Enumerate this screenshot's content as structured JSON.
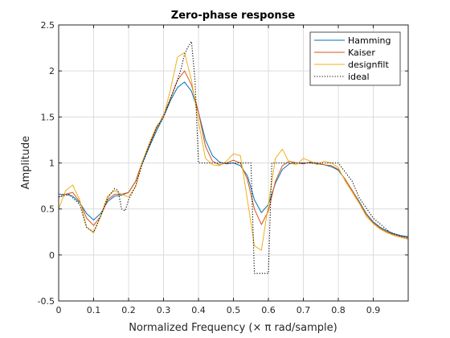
{
  "chart_data": {
    "type": "line",
    "title": "Zero-phase response",
    "xlabel": "Normalized Frequency (× π rad/sample)",
    "ylabel": "Amplitude",
    "xlim": [
      0,
      1
    ],
    "ylim": [
      -0.5,
      2.5
    ],
    "xticks": [
      "0",
      "0.1",
      "0.2",
      "0.3",
      "0.4",
      "0.5",
      "0.6",
      "0.7",
      "0.8",
      "0.9"
    ],
    "yticks": [
      "-0.5",
      "0",
      "0.5",
      "1",
      "1.5",
      "2",
      "2.5"
    ],
    "grid": true,
    "legend_position": "top-right",
    "series": [
      {
        "name": "Hamming",
        "color": "#0072bd",
        "style": "solid",
        "x": [
          0,
          0.02,
          0.04,
          0.06,
          0.08,
          0.1,
          0.12,
          0.14,
          0.16,
          0.18,
          0.2,
          0.22,
          0.24,
          0.26,
          0.28,
          0.3,
          0.32,
          0.34,
          0.36,
          0.38,
          0.4,
          0.42,
          0.44,
          0.46,
          0.48,
          0.5,
          0.52,
          0.54,
          0.56,
          0.58,
          0.6,
          0.62,
          0.64,
          0.66,
          0.68,
          0.7,
          0.72,
          0.74,
          0.76,
          0.78,
          0.8,
          0.82,
          0.84,
          0.86,
          0.88,
          0.9,
          0.92,
          0.94,
          0.96,
          0.98,
          1.0
        ],
        "y": [
          0.66,
          0.66,
          0.64,
          0.57,
          0.45,
          0.38,
          0.45,
          0.58,
          0.64,
          0.65,
          0.68,
          0.8,
          1.0,
          1.18,
          1.35,
          1.5,
          1.68,
          1.82,
          1.88,
          1.78,
          1.55,
          1.25,
          1.08,
          1.01,
          0.99,
          1.0,
          0.97,
          0.86,
          0.6,
          0.46,
          0.55,
          0.78,
          0.93,
          0.99,
          1.0,
          1.0,
          1.0,
          0.99,
          0.98,
          0.96,
          0.92,
          0.82,
          0.7,
          0.58,
          0.45,
          0.36,
          0.3,
          0.26,
          0.23,
          0.21,
          0.2
        ]
      },
      {
        "name": "Kaiser",
        "color": "#d95319",
        "style": "solid",
        "x": [
          0,
          0.02,
          0.04,
          0.06,
          0.08,
          0.1,
          0.12,
          0.14,
          0.16,
          0.18,
          0.2,
          0.22,
          0.24,
          0.26,
          0.28,
          0.3,
          0.32,
          0.34,
          0.36,
          0.38,
          0.4,
          0.42,
          0.44,
          0.46,
          0.48,
          0.5,
          0.52,
          0.54,
          0.56,
          0.58,
          0.6,
          0.62,
          0.64,
          0.66,
          0.68,
          0.7,
          0.72,
          0.74,
          0.76,
          0.78,
          0.8,
          0.82,
          0.84,
          0.86,
          0.88,
          0.9,
          0.92,
          0.94,
          0.96,
          0.98,
          1.0
        ],
        "y": [
          0.63,
          0.66,
          0.68,
          0.58,
          0.4,
          0.32,
          0.42,
          0.6,
          0.66,
          0.66,
          0.68,
          0.8,
          1.02,
          1.2,
          1.38,
          1.52,
          1.7,
          1.9,
          2.0,
          1.85,
          1.55,
          1.18,
          1.02,
          0.98,
          1.0,
          1.03,
          1.0,
          0.82,
          0.5,
          0.33,
          0.48,
          0.8,
          0.97,
          1.02,
          1.0,
          0.99,
          1.01,
          1.0,
          0.98,
          0.97,
          0.93,
          0.82,
          0.7,
          0.57,
          0.44,
          0.35,
          0.29,
          0.25,
          0.22,
          0.2,
          0.19
        ]
      },
      {
        "name": "designfilt",
        "color": "#edb120",
        "style": "solid",
        "x": [
          0,
          0.02,
          0.04,
          0.06,
          0.08,
          0.1,
          0.12,
          0.14,
          0.16,
          0.18,
          0.2,
          0.22,
          0.24,
          0.26,
          0.28,
          0.3,
          0.32,
          0.34,
          0.36,
          0.38,
          0.4,
          0.42,
          0.44,
          0.46,
          0.48,
          0.5,
          0.52,
          0.54,
          0.56,
          0.58,
          0.6,
          0.62,
          0.64,
          0.66,
          0.68,
          0.7,
          0.72,
          0.74,
          0.76,
          0.78,
          0.8,
          0.82,
          0.84,
          0.86,
          0.88,
          0.9,
          0.92,
          0.94,
          0.96,
          0.98,
          1.0
        ],
        "y": [
          0.5,
          0.7,
          0.76,
          0.6,
          0.3,
          0.24,
          0.42,
          0.64,
          0.7,
          0.66,
          0.63,
          0.74,
          1.02,
          1.22,
          1.4,
          1.5,
          1.8,
          2.15,
          2.2,
          1.9,
          1.45,
          1.05,
          0.98,
          0.97,
          1.02,
          1.1,
          1.08,
          0.6,
          0.1,
          0.05,
          0.55,
          1.05,
          1.15,
          1.0,
          0.98,
          1.05,
          1.02,
          0.98,
          1.02,
          1.0,
          0.95,
          0.8,
          0.68,
          0.56,
          0.42,
          0.34,
          0.28,
          0.24,
          0.21,
          0.19,
          0.17
        ]
      },
      {
        "name": "ideal",
        "color": "#000000",
        "style": "dotted",
        "x": [
          0,
          0.03,
          0.06,
          0.08,
          0.1,
          0.12,
          0.14,
          0.16,
          0.17,
          0.18,
          0.19,
          0.2,
          0.22,
          0.24,
          0.26,
          0.28,
          0.3,
          0.32,
          0.34,
          0.35,
          0.36,
          0.37,
          0.38,
          0.39,
          0.4,
          0.42,
          0.45,
          0.5,
          0.55,
          0.56,
          0.6,
          0.61,
          0.7,
          0.8,
          0.84,
          0.86,
          0.9,
          0.95,
          1.0
        ],
        "y": [
          0.63,
          0.66,
          0.55,
          0.3,
          0.25,
          0.42,
          0.62,
          0.72,
          0.7,
          0.5,
          0.48,
          0.6,
          0.75,
          1.0,
          1.2,
          1.38,
          1.5,
          1.7,
          1.9,
          2.02,
          2.18,
          2.26,
          2.32,
          1.9,
          1.0,
          1.0,
          1.0,
          1.0,
          1.0,
          -0.2,
          -0.2,
          1.0,
          1.0,
          1.0,
          0.8,
          0.62,
          0.4,
          0.24,
          0.18
        ]
      }
    ]
  }
}
